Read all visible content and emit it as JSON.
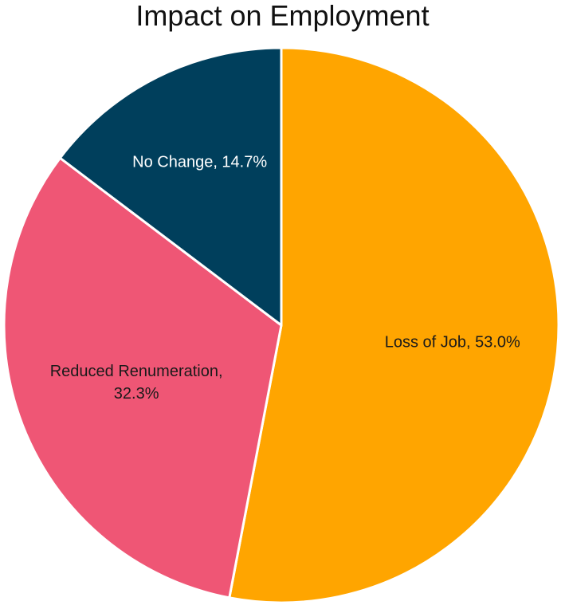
{
  "chart_data": {
    "type": "pie",
    "title": "Impact on Employment",
    "slices": [
      {
        "label": "Loss of Job",
        "value": 53.0,
        "value_label": "53.0%",
        "color": "#FFA500",
        "text_color": "#1a1a1a"
      },
      {
        "label": "Reduced Renumeration",
        "value": 32.3,
        "value_label": "32.3%",
        "color": "#EF5675",
        "text_color": "#1a1a1a"
      },
      {
        "label": "No Change",
        "value": 14.7,
        "value_label": "14.7%",
        "color": "#003F5C",
        "text_color": "#ffffff"
      }
    ],
    "start_angle_deg": 0,
    "direction": "clockwise",
    "legend": "none"
  }
}
